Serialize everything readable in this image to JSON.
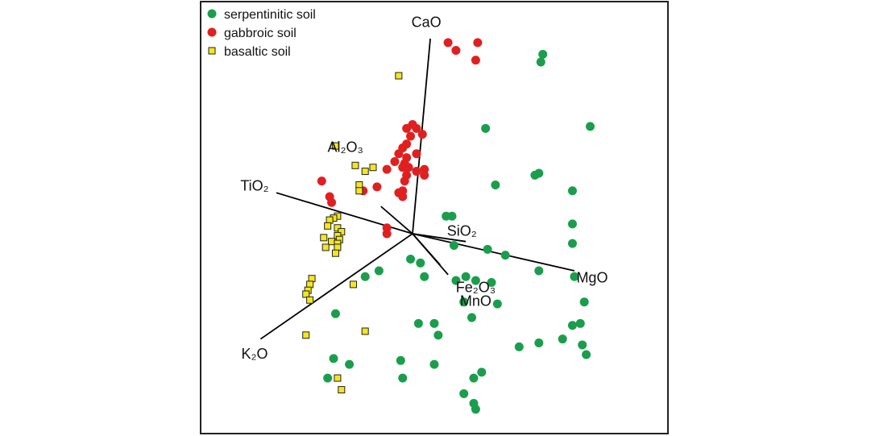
{
  "chart_data": {
    "type": "scatter",
    "subtype": "pca-biplot",
    "title": "",
    "xlabel": "",
    "ylabel": "",
    "grid": false,
    "legend_position": "top-left",
    "colors": {
      "serpentinitic": "#1a9e4e",
      "gabbroic": "#e02020",
      "basaltic": "#f5e61b",
      "basaltic_edge": "#222222",
      "axis": "#000000",
      "frame": "#222222"
    },
    "legend": [
      {
        "key": "serpentinitic",
        "label": "serpentinitic soil",
        "marker": "circle"
      },
      {
        "key": "gabbroic",
        "label": "gabbroic soil",
        "marker": "circle"
      },
      {
        "key": "basaltic",
        "label": "basaltic soil",
        "marker": "square"
      }
    ],
    "xlim": [
      -1,
      1
    ],
    "ylim": [
      -1,
      1
    ],
    "origin": [
      0,
      0
    ],
    "loadings": [
      {
        "name": "CaO",
        "label": "CaO",
        "x": 0.09,
        "y": 1.0,
        "label_x": 0.07,
        "label_y": 1.08
      },
      {
        "name": "TiO2",
        "label": "TiO₂",
        "x": -0.69,
        "y": 0.21,
        "label_x": -0.8,
        "label_y": 0.24
      },
      {
        "name": "K2O",
        "label": "K₂O",
        "x": -0.77,
        "y": -0.54,
        "label_x": -0.8,
        "label_y": -0.62
      },
      {
        "name": "MgO",
        "label": "MgO",
        "x": 0.82,
        "y": -0.19,
        "label_x": 0.91,
        "label_y": -0.23
      },
      {
        "name": "Al2O3",
        "label": "Al₂O₃",
        "x": -0.16,
        "y": 0.14,
        "label_x": -0.34,
        "label_y": 0.44
      },
      {
        "name": "SiO2",
        "label": "SiO₂",
        "x": 0.27,
        "y": -0.04,
        "label_x": 0.25,
        "label_y": 0.01
      },
      {
        "name": "Fe2O3",
        "label": "Fe₂O₃",
        "x": 0.18,
        "y": -0.21,
        "label_x": 0.32,
        "label_y": -0.28
      },
      {
        "name": "MnO",
        "label": "MnO",
        "x": 0.14,
        "y": -0.16,
        "label_x": 0.32,
        "label_y": -0.35
      }
    ],
    "series": [
      {
        "key": "serpentinitic",
        "name": "serpentinitic soil",
        "points": [
          [
            0.66,
            0.92
          ],
          [
            0.65,
            0.88
          ],
          [
            0.37,
            0.54
          ],
          [
            0.9,
            0.55
          ],
          [
            0.62,
            0.3
          ],
          [
            0.64,
            0.31
          ],
          [
            0.42,
            0.25
          ],
          [
            0.81,
            0.22
          ],
          [
            0.17,
            0.09
          ],
          [
            0.2,
            0.09
          ],
          [
            0.81,
            0.05
          ],
          [
            0.81,
            -0.05
          ],
          [
            0.21,
            -0.06
          ],
          [
            0.38,
            -0.08
          ],
          [
            0.47,
            -0.11
          ],
          [
            -0.01,
            -0.13
          ],
          [
            0.04,
            -0.15
          ],
          [
            0.64,
            -0.19
          ],
          [
            0.82,
            -0.22
          ],
          [
            -0.17,
            -0.19
          ],
          [
            -0.24,
            -0.22
          ],
          [
            0.06,
            -0.22
          ],
          [
            0.22,
            -0.24
          ],
          [
            0.27,
            -0.22
          ],
          [
            0.32,
            -0.24
          ],
          [
            0.4,
            -0.25
          ],
          [
            0.26,
            -0.35
          ],
          [
            0.43,
            -0.36
          ],
          [
            0.87,
            -0.35
          ],
          [
            -0.39,
            -0.41
          ],
          [
            0.03,
            -0.46
          ],
          [
            0.11,
            -0.46
          ],
          [
            0.3,
            -0.43
          ],
          [
            0.81,
            -0.47
          ],
          [
            0.85,
            -0.46
          ],
          [
            0.13,
            -0.52
          ],
          [
            0.76,
            -0.54
          ],
          [
            0.64,
            -0.56
          ],
          [
            0.54,
            -0.58
          ],
          [
            -0.4,
            -0.64
          ],
          [
            -0.32,
            -0.67
          ],
          [
            -0.06,
            -0.65
          ],
          [
            0.11,
            -0.67
          ],
          [
            0.88,
            -0.62
          ],
          [
            0.86,
            -0.57
          ],
          [
            0.35,
            -0.71
          ],
          [
            -0.43,
            -0.74
          ],
          [
            -0.05,
            -0.74
          ],
          [
            0.31,
            -0.74
          ],
          [
            0.26,
            -0.82
          ],
          [
            0.31,
            -0.87
          ],
          [
            0.32,
            -0.9
          ]
        ]
      },
      {
        "key": "gabbroic",
        "name": "gabbroic soil",
        "points": [
          [
            0.18,
            0.98
          ],
          [
            0.33,
            0.98
          ],
          [
            0.22,
            0.94
          ],
          [
            0.32,
            0.89
          ],
          [
            0.0,
            0.56
          ],
          [
            0.02,
            0.54
          ],
          [
            -0.03,
            0.54
          ],
          [
            0.05,
            0.51
          ],
          [
            -0.01,
            0.5
          ],
          [
            -0.03,
            0.46
          ],
          [
            -0.05,
            0.44
          ],
          [
            0.02,
            0.41
          ],
          [
            -0.07,
            0.41
          ],
          [
            -0.03,
            0.39
          ],
          [
            -0.04,
            0.36
          ],
          [
            -0.09,
            0.37
          ],
          [
            -0.02,
            0.34
          ],
          [
            -0.05,
            0.34
          ],
          [
            0.02,
            0.32
          ],
          [
            0.06,
            0.33
          ],
          [
            0.06,
            0.3
          ],
          [
            -0.13,
            0.33
          ],
          [
            -0.03,
            0.3
          ],
          [
            -0.04,
            0.27
          ],
          [
            -0.18,
            0.24
          ],
          [
            -0.25,
            0.22
          ],
          [
            -0.05,
            0.22
          ],
          [
            -0.07,
            0.21
          ],
          [
            -0.05,
            0.19
          ],
          [
            -0.46,
            0.27
          ],
          [
            -0.42,
            0.19
          ],
          [
            -0.41,
            0.16
          ],
          [
            -0.13,
            0.03
          ],
          [
            -0.13,
            0.0
          ]
        ]
      },
      {
        "key": "basaltic",
        "name": "basaltic soil",
        "points": [
          [
            -0.07,
            0.81
          ],
          [
            -0.39,
            0.45
          ],
          [
            -0.29,
            0.35
          ],
          [
            -0.2,
            0.34
          ],
          [
            -0.24,
            0.32
          ],
          [
            -0.27,
            0.25
          ],
          [
            -0.27,
            0.22
          ],
          [
            -0.38,
            0.09
          ],
          [
            -0.4,
            0.08
          ],
          [
            -0.42,
            0.07
          ],
          [
            -0.43,
            0.04
          ],
          [
            -0.38,
            0.03
          ],
          [
            -0.36,
            0.01
          ],
          [
            -0.38,
            -0.01
          ],
          [
            -0.37,
            -0.03
          ],
          [
            -0.41,
            -0.04
          ],
          [
            -0.45,
            -0.02
          ],
          [
            -0.38,
            -0.05
          ],
          [
            -0.44,
            -0.07
          ],
          [
            -0.38,
            -0.07
          ],
          [
            -0.39,
            -0.1
          ],
          [
            -0.51,
            -0.23
          ],
          [
            -0.52,
            -0.26
          ],
          [
            -0.53,
            -0.29
          ],
          [
            -0.54,
            -0.31
          ],
          [
            -0.52,
            -0.34
          ],
          [
            -0.3,
            -0.26
          ],
          [
            -0.54,
            -0.52
          ],
          [
            -0.24,
            -0.5
          ],
          [
            -0.38,
            -0.74
          ],
          [
            -0.36,
            -0.8
          ]
        ]
      }
    ]
  }
}
